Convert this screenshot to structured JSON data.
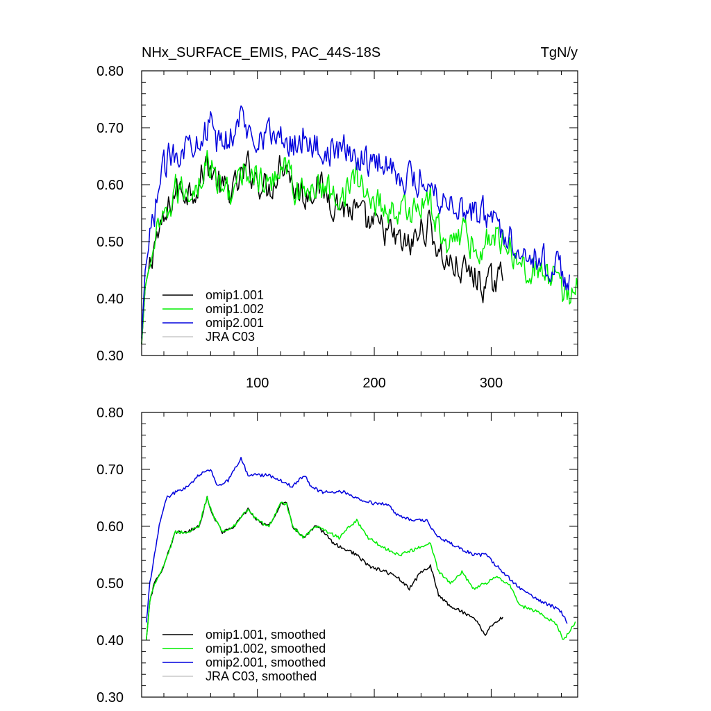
{
  "chart_data": [
    {
      "id": "top",
      "type": "line",
      "title": "NHx_SURFACE_EMIS, PAC_44S-18S",
      "units": "TgN/y",
      "xlim": [
        1,
        374
      ],
      "ylim": [
        0.3,
        0.8
      ],
      "xticks": [
        100,
        200,
        300
      ],
      "xtick_labels": [
        "100",
        "200",
        "300"
      ],
      "yticks": [
        0.3,
        0.4,
        0.5,
        0.6,
        0.7,
        0.8
      ],
      "ytick_labels": [
        "0.30",
        "0.40",
        "0.50",
        "0.60",
        "0.70",
        "0.80"
      ],
      "smoothed": false,
      "legend_position": "bottom-left",
      "series": [
        {
          "name": "omip1.001",
          "color": "#000000",
          "end": 310,
          "knots": [
            [
              1,
              0.32
            ],
            [
              4,
              0.42
            ],
            [
              8,
              0.46
            ],
            [
              12,
              0.5
            ],
            [
              20,
              0.53
            ],
            [
              25,
              0.56
            ],
            [
              30,
              0.59
            ],
            [
              40,
              0.59
            ],
            [
              50,
              0.6
            ],
            [
              57,
              0.64
            ],
            [
              62,
              0.62
            ],
            [
              70,
              0.59
            ],
            [
              80,
              0.59
            ],
            [
              92,
              0.63
            ],
            [
              100,
              0.61
            ],
            [
              110,
              0.59
            ],
            [
              120,
              0.64
            ],
            [
              125,
              0.64
            ],
            [
              130,
              0.6
            ],
            [
              140,
              0.58
            ],
            [
              150,
              0.6
            ],
            [
              157,
              0.59
            ],
            [
              165,
              0.57
            ],
            [
              175,
              0.56
            ],
            [
              185,
              0.55
            ],
            [
              195,
              0.53
            ],
            [
              210,
              0.52
            ],
            [
              220,
              0.5
            ],
            [
              230,
              0.49
            ],
            [
              240,
              0.52
            ],
            [
              248,
              0.53
            ],
            [
              255,
              0.48
            ],
            [
              265,
              0.46
            ],
            [
              275,
              0.45
            ],
            [
              285,
              0.44
            ],
            [
              295,
              0.42
            ],
            [
              310,
              0.44
            ]
          ]
        },
        {
          "name": "omip1.002",
          "color": "#00ee00",
          "end": 374,
          "knots": [
            [
              1,
              0.32
            ],
            [
              4,
              0.42
            ],
            [
              8,
              0.46
            ],
            [
              12,
              0.5
            ],
            [
              20,
              0.53
            ],
            [
              25,
              0.56
            ],
            [
              30,
              0.59
            ],
            [
              40,
              0.59
            ],
            [
              50,
              0.6
            ],
            [
              57,
              0.64
            ],
            [
              62,
              0.62
            ],
            [
              70,
              0.59
            ],
            [
              80,
              0.59
            ],
            [
              92,
              0.63
            ],
            [
              100,
              0.61
            ],
            [
              110,
              0.59
            ],
            [
              120,
              0.64
            ],
            [
              125,
              0.64
            ],
            [
              130,
              0.6
            ],
            [
              140,
              0.58
            ],
            [
              150,
              0.6
            ],
            [
              160,
              0.59
            ],
            [
              170,
              0.58
            ],
            [
              178,
              0.6
            ],
            [
              185,
              0.61
            ],
            [
              195,
              0.58
            ],
            [
              210,
              0.56
            ],
            [
              222,
              0.55
            ],
            [
              235,
              0.56
            ],
            [
              248,
              0.57
            ],
            [
              255,
              0.52
            ],
            [
              265,
              0.5
            ],
            [
              275,
              0.52
            ],
            [
              285,
              0.49
            ],
            [
              295,
              0.5
            ],
            [
              305,
              0.51
            ],
            [
              315,
              0.5
            ],
            [
              325,
              0.46
            ],
            [
              340,
              0.45
            ],
            [
              355,
              0.43
            ],
            [
              362,
              0.4
            ],
            [
              374,
              0.43
            ]
          ]
        },
        {
          "name": "omip2.001",
          "color": "#0000dd",
          "end": 367,
          "knots": [
            [
              1,
              0.33
            ],
            [
              4,
              0.45
            ],
            [
              8,
              0.5
            ],
            [
              12,
              0.55
            ],
            [
              16,
              0.6
            ],
            [
              22,
              0.64
            ],
            [
              30,
              0.66
            ],
            [
              40,
              0.67
            ],
            [
              50,
              0.69
            ],
            [
              60,
              0.7
            ],
            [
              66,
              0.67
            ],
            [
              75,
              0.68
            ],
            [
              86,
              0.72
            ],
            [
              92,
              0.69
            ],
            [
              100,
              0.69
            ],
            [
              110,
              0.69
            ],
            [
              120,
              0.68
            ],
            [
              130,
              0.67
            ],
            [
              140,
              0.69
            ],
            [
              146,
              0.67
            ],
            [
              155,
              0.66
            ],
            [
              165,
              0.66
            ],
            [
              175,
              0.66
            ],
            [
              185,
              0.65
            ],
            [
              200,
              0.64
            ],
            [
              210,
              0.64
            ],
            [
              220,
              0.62
            ],
            [
              232,
              0.61
            ],
            [
              245,
              0.61
            ],
            [
              255,
              0.58
            ],
            [
              265,
              0.57
            ],
            [
              275,
              0.56
            ],
            [
              285,
              0.55
            ],
            [
              295,
              0.55
            ],
            [
              305,
              0.53
            ],
            [
              315,
              0.51
            ],
            [
              325,
              0.49
            ],
            [
              340,
              0.47
            ],
            [
              352,
              0.46
            ],
            [
              360,
              0.45
            ],
            [
              367,
              0.43
            ]
          ]
        },
        {
          "name": "JRA C03",
          "color": "#c8c8c8",
          "knots": []
        }
      ]
    },
    {
      "id": "bottom",
      "type": "line",
      "title": "",
      "units": "",
      "xlim": [
        1,
        374
      ],
      "ylim": [
        0.3,
        0.8
      ],
      "xticks": [
        100,
        200,
        300
      ],
      "xtick_labels": [
        "",
        "",
        ""
      ],
      "yticks": [
        0.3,
        0.4,
        0.5,
        0.6,
        0.7,
        0.8
      ],
      "ytick_labels": [
        "0.30",
        "0.40",
        "0.50",
        "0.60",
        "0.70",
        "0.80"
      ],
      "smoothed": true,
      "legend_position": "bottom-left",
      "series": [
        {
          "name": "omip1.001, smoothed",
          "color": "#000000",
          "start": 5,
          "end": 310,
          "knots": [
            [
              5,
              0.4
            ],
            [
              8,
              0.47
            ],
            [
              12,
              0.5
            ],
            [
              20,
              0.53
            ],
            [
              25,
              0.56
            ],
            [
              30,
              0.59
            ],
            [
              40,
              0.59
            ],
            [
              50,
              0.6
            ],
            [
              57,
              0.65
            ],
            [
              62,
              0.62
            ],
            [
              70,
              0.59
            ],
            [
              80,
              0.6
            ],
            [
              92,
              0.63
            ],
            [
              100,
              0.61
            ],
            [
              110,
              0.6
            ],
            [
              120,
              0.64
            ],
            [
              125,
              0.64
            ],
            [
              130,
              0.6
            ],
            [
              140,
              0.58
            ],
            [
              150,
              0.6
            ],
            [
              157,
              0.59
            ],
            [
              165,
              0.57
            ],
            [
              175,
              0.56
            ],
            [
              185,
              0.55
            ],
            [
              195,
              0.53
            ],
            [
              210,
              0.52
            ],
            [
              220,
              0.51
            ],
            [
              230,
              0.49
            ],
            [
              240,
              0.52
            ],
            [
              248,
              0.53
            ],
            [
              255,
              0.48
            ],
            [
              265,
              0.46
            ],
            [
              275,
              0.45
            ],
            [
              285,
              0.44
            ],
            [
              295,
              0.41
            ],
            [
              302,
              0.43
            ],
            [
              310,
              0.44
            ]
          ]
        },
        {
          "name": "omip1.002, smoothed",
          "color": "#00ee00",
          "start": 5,
          "end": 372,
          "knots": [
            [
              5,
              0.4
            ],
            [
              8,
              0.47
            ],
            [
              12,
              0.5
            ],
            [
              20,
              0.53
            ],
            [
              25,
              0.56
            ],
            [
              30,
              0.59
            ],
            [
              40,
              0.59
            ],
            [
              50,
              0.6
            ],
            [
              57,
              0.65
            ],
            [
              62,
              0.62
            ],
            [
              70,
              0.59
            ],
            [
              80,
              0.6
            ],
            [
              92,
              0.63
            ],
            [
              100,
              0.61
            ],
            [
              110,
              0.6
            ],
            [
              120,
              0.64
            ],
            [
              125,
              0.64
            ],
            [
              130,
              0.6
            ],
            [
              140,
              0.58
            ],
            [
              150,
              0.6
            ],
            [
              160,
              0.59
            ],
            [
              170,
              0.58
            ],
            [
              178,
              0.6
            ],
            [
              185,
              0.61
            ],
            [
              195,
              0.58
            ],
            [
              210,
              0.56
            ],
            [
              222,
              0.55
            ],
            [
              235,
              0.56
            ],
            [
              248,
              0.57
            ],
            [
              255,
              0.52
            ],
            [
              265,
              0.5
            ],
            [
              275,
              0.52
            ],
            [
              285,
              0.49
            ],
            [
              295,
              0.5
            ],
            [
              305,
              0.51
            ],
            [
              315,
              0.5
            ],
            [
              325,
              0.46
            ],
            [
              340,
              0.45
            ],
            [
              355,
              0.43
            ],
            [
              362,
              0.4
            ],
            [
              372,
              0.43
            ]
          ]
        },
        {
          "name": "omip2.001, smoothed",
          "color": "#0000dd",
          "start": 5,
          "end": 365,
          "knots": [
            [
              5,
              0.43
            ],
            [
              8,
              0.5
            ],
            [
              12,
              0.55
            ],
            [
              16,
              0.6
            ],
            [
              22,
              0.65
            ],
            [
              30,
              0.66
            ],
            [
              40,
              0.67
            ],
            [
              50,
              0.69
            ],
            [
              60,
              0.7
            ],
            [
              66,
              0.67
            ],
            [
              75,
              0.68
            ],
            [
              86,
              0.72
            ],
            [
              92,
              0.69
            ],
            [
              100,
              0.69
            ],
            [
              110,
              0.69
            ],
            [
              120,
              0.68
            ],
            [
              130,
              0.67
            ],
            [
              140,
              0.69
            ],
            [
              146,
              0.67
            ],
            [
              155,
              0.66
            ],
            [
              165,
              0.66
            ],
            [
              175,
              0.66
            ],
            [
              185,
              0.65
            ],
            [
              200,
              0.64
            ],
            [
              210,
              0.64
            ],
            [
              220,
              0.62
            ],
            [
              232,
              0.61
            ],
            [
              245,
              0.61
            ],
            [
              255,
              0.58
            ],
            [
              265,
              0.57
            ],
            [
              275,
              0.56
            ],
            [
              285,
              0.55
            ],
            [
              295,
              0.55
            ],
            [
              305,
              0.53
            ],
            [
              315,
              0.51
            ],
            [
              325,
              0.49
            ],
            [
              340,
              0.47
            ],
            [
              352,
              0.46
            ],
            [
              360,
              0.45
            ],
            [
              365,
              0.43
            ]
          ]
        },
        {
          "name": "JRA C03, smoothed",
          "color": "#c8c8c8",
          "knots": []
        }
      ]
    }
  ]
}
